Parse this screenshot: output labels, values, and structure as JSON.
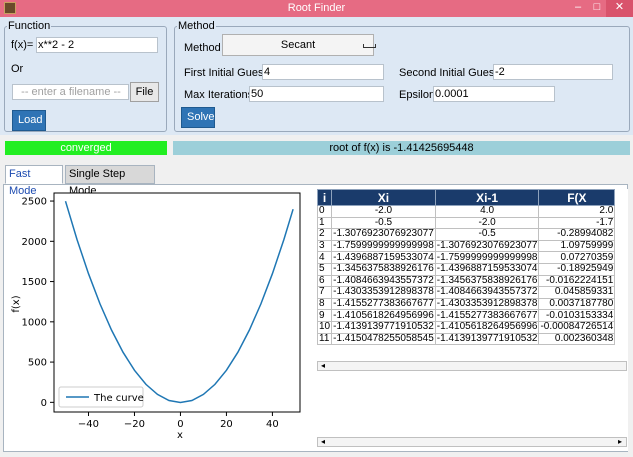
{
  "window": {
    "title": "Root Finder",
    "minimize": "–",
    "maximize": "□",
    "close": "✕"
  },
  "function_panel": {
    "legend": "Function",
    "fx_label": "f(x)=",
    "fx_value": "x**2 - 2",
    "or_label": "Or",
    "filename_placeholder": "-- enter a filename --",
    "file_button": "File",
    "load_button": "Load"
  },
  "method_panel": {
    "legend": "Method",
    "method_label": "Method",
    "method_value": "Secant",
    "first_guess_label": "First Initial Guess",
    "first_guess_value": "4",
    "second_guess_label": "Second Initial Guess",
    "second_guess_value": "-2",
    "max_iter_label": "Max Iterations",
    "max_iter_value": "50",
    "epsilon_label": "Epsilon",
    "epsilon_value": "0.0001",
    "solve_button": "Solve"
  },
  "status": {
    "state": "converged",
    "root_text": "root of f(x) is -1.41425695448",
    "state_color": "#22ee22",
    "root_color": "#9ccfd9"
  },
  "tabs": [
    "Fast Mode",
    "Single Step Mode"
  ],
  "table": {
    "headers": [
      "i",
      "Xi",
      "Xi-1",
      "F(X"
    ],
    "rows": [
      [
        "0",
        "-2.0",
        "4.0",
        "2.0"
      ],
      [
        "1",
        "-0.5",
        "-2.0",
        "-1.7"
      ],
      [
        "2",
        "-1.3076923076923077",
        "-0.5",
        "-0.28994082"
      ],
      [
        "3",
        "-1.7599999999999998",
        "-1.3076923076923077",
        "1.09759999"
      ],
      [
        "4",
        "-1.4396887159533074",
        "-1.7599999999999998",
        "0.07270359"
      ],
      [
        "5",
        "-1.3456375838926176",
        "-1.4396887159533074",
        "-0.18925949"
      ],
      [
        "6",
        "-1.4084663943557372",
        "-1.3456375838926176",
        "-0.0162224151"
      ],
      [
        "7",
        "-1.4303353912898378",
        "-1.4084663943557372",
        "0.045859331"
      ],
      [
        "8",
        "-1.4155277383667677",
        "-1.4303353912898378",
        "0.0037187780"
      ],
      [
        "9",
        "-1.4105618264956996",
        "-1.4155277383667677",
        "-0.0103153334"
      ],
      [
        "10",
        "-1.4139139771910532",
        "-1.4105618264956996",
        "-0.00084726514"
      ],
      [
        "11",
        "-1.4150478255058545",
        "-1.4139139771910532",
        "0.002360348"
      ]
    ],
    "scroll_left": "◂",
    "scroll_right": "▸"
  },
  "chart_data": {
    "type": "line",
    "title": "",
    "xlabel": "x",
    "ylabel": "f(x)",
    "xlim": [
      -55,
      52
    ],
    "ylim": [
      -120,
      2600
    ],
    "xticks": [
      -40,
      -20,
      0,
      20,
      40
    ],
    "yticks": [
      0,
      500,
      1000,
      1500,
      2000,
      2500
    ],
    "series": [
      {
        "name": "The curve",
        "color": "#1f77b4",
        "x": [
          -50,
          -45,
          -40,
          -35,
          -30,
          -25,
          -20,
          -15,
          -10,
          -5,
          0,
          5,
          10,
          15,
          20,
          25,
          30,
          35,
          40,
          45,
          49
        ],
        "y": [
          2498,
          2023,
          1598,
          1223,
          898,
          623,
          398,
          223,
          98,
          23,
          -2,
          23,
          98,
          223,
          398,
          623,
          898,
          1223,
          1598,
          2023,
          2399
        ]
      }
    ],
    "legend": "lower-left",
    "grid": false
  }
}
